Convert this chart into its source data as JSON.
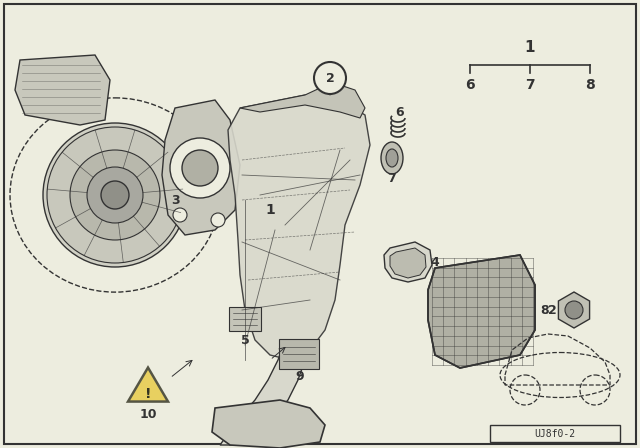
{
  "bg_color": "#ededdf",
  "line_color": "#333333",
  "part_color": "#d8d8cc",
  "dark_part": "#b0b0a0",
  "diagram_code": "UJ8f0-2",
  "figsize": [
    6.4,
    4.48
  ],
  "dpi": 100
}
